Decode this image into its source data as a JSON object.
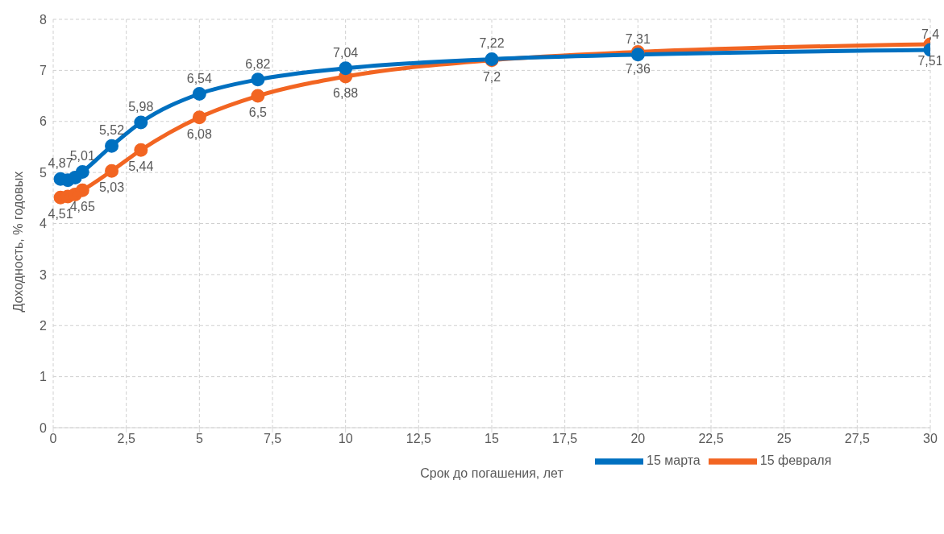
{
  "chart_data": {
    "type": "line",
    "xlabel": "Срок до погашения, лет",
    "ylabel": "Доходность, % годовых",
    "x": [
      0.25,
      0.5,
      0.75,
      1,
      2,
      3,
      5,
      7,
      10,
      15,
      20,
      30
    ],
    "series": [
      {
        "name": "15 февраля",
        "color": "#f26522",
        "values": [
          4.51,
          4.53,
          4.57,
          4.65,
          5.03,
          5.44,
          6.08,
          6.5,
          6.88,
          7.2,
          7.36,
          7.51
        ],
        "value_labels": [
          "4,51",
          null,
          null,
          "4,65",
          "5,03",
          "5,44",
          "6,08",
          "6,5",
          "6,88",
          "7,2",
          "7,36",
          "7,51"
        ]
      },
      {
        "name": "15 марта",
        "color": "#0070c0",
        "values": [
          4.87,
          4.85,
          4.9,
          5.01,
          5.52,
          5.98,
          6.54,
          6.82,
          7.04,
          7.22,
          7.31,
          7.4
        ],
        "value_labels": [
          "4,87",
          null,
          null,
          "5,01",
          "5,52",
          "5,98",
          "6,54",
          "6,82",
          "7,04",
          "7,22",
          "7,31",
          "7,4"
        ]
      }
    ],
    "xlim": [
      0,
      30
    ],
    "xticks": [
      {
        "value": 0,
        "label": "0"
      },
      {
        "value": 2.5,
        "label": "2,5"
      },
      {
        "value": 5,
        "label": "5"
      },
      {
        "value": 7.5,
        "label": "7,5"
      },
      {
        "value": 10,
        "label": "10"
      },
      {
        "value": 12.5,
        "label": "12,5"
      },
      {
        "value": 15,
        "label": "15"
      },
      {
        "value": 17.5,
        "label": "17,5"
      },
      {
        "value": 20,
        "label": "20"
      },
      {
        "value": 22.5,
        "label": "22,5"
      },
      {
        "value": 25,
        "label": "25"
      },
      {
        "value": 27.5,
        "label": "27,5"
      },
      {
        "value": 30,
        "label": "30"
      }
    ],
    "ylim": [
      0,
      8
    ],
    "yticks": [
      0,
      1,
      2,
      3,
      4,
      5,
      6,
      7,
      8
    ],
    "grid": true,
    "legend": "bottom right",
    "marker": "circle",
    "line_style": "solid"
  }
}
